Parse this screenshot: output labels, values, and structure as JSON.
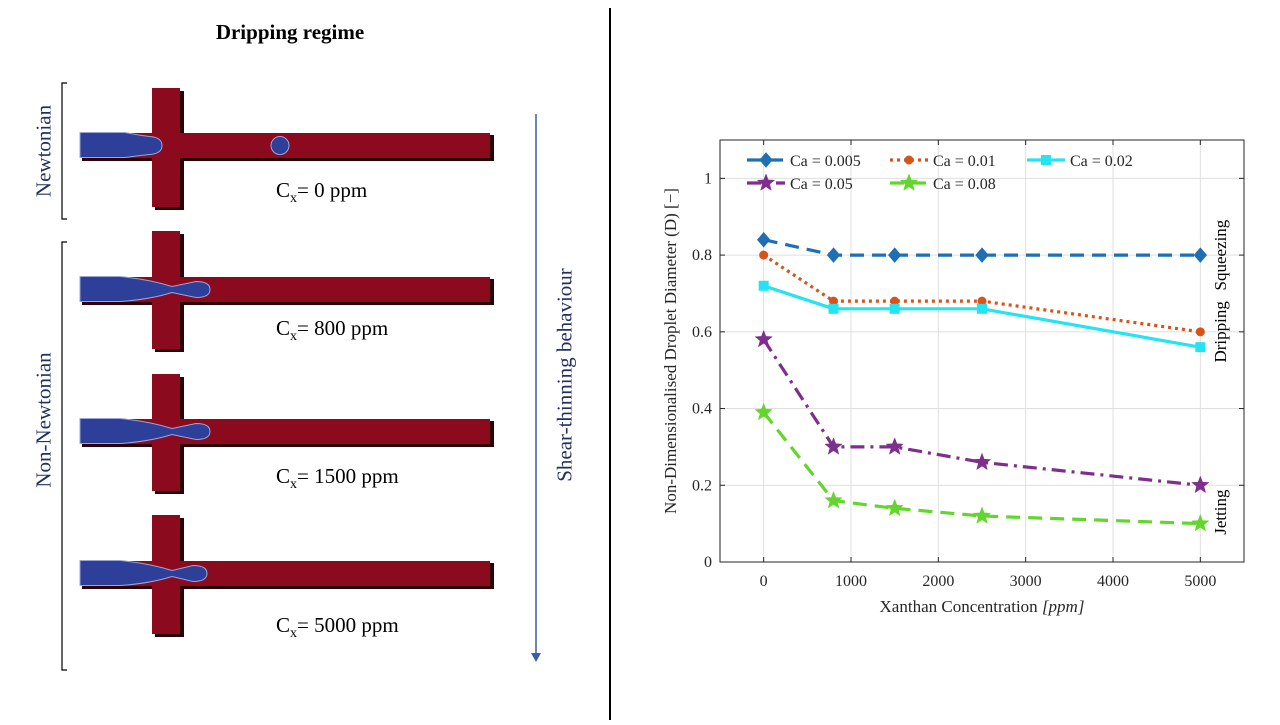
{
  "left": {
    "title": "Dripping regime",
    "group_newtonian": "Newtonian",
    "group_non_newtonian": "Non-Newtonian",
    "trend_label": "Shear-thinning behaviour",
    "cases": [
      {
        "symbol": "C",
        "subscript": "x",
        "value": "= 0 ppm"
      },
      {
        "symbol": "C",
        "subscript": "x",
        "value": "= 800 ppm"
      },
      {
        "symbol": "C",
        "subscript": "x",
        "value": "= 1500 ppm"
      },
      {
        "symbol": "C",
        "subscript": "x",
        "value": "= 5000 ppm"
      }
    ],
    "colors": {
      "channel": "#8b0a1e",
      "droplet": "#2e3f9a",
      "arrow": "#3a5fa8"
    }
  },
  "chart_data": {
    "type": "line",
    "title": "",
    "xlabel_prefix": "Xanthan Concentration ",
    "xlabel_unit": "[ppm]",
    "ylabel": "Non-Dimensionalised Droplet Diameter (D) [−]",
    "xlim": [
      -500,
      5500
    ],
    "ylim": [
      0,
      1.1
    ],
    "xticks": [
      0,
      1000,
      2000,
      3000,
      4000,
      5000
    ],
    "yticks": [
      0,
      0.2,
      0.4,
      0.6,
      0.8,
      1
    ],
    "xtick_labels": [
      "0",
      "1000",
      "2000",
      "3000",
      "4000",
      "5000"
    ],
    "ytick_labels": [
      "0",
      "0.2",
      "0.4",
      "0.6",
      "0.8",
      "1"
    ],
    "grid": true,
    "legend_position": "top",
    "x": [
      0,
      800,
      1500,
      2500,
      5000
    ],
    "series": [
      {
        "name": "Ca = 0.005",
        "color": "#1f6fb4",
        "marker": "diamond",
        "dash": "dashed",
        "values": [
          0.84,
          0.8,
          0.8,
          0.8,
          0.8
        ]
      },
      {
        "name": "Ca = 0.01",
        "color": "#d95319",
        "marker": "circle",
        "dash": "dotted",
        "values": [
          0.8,
          0.68,
          0.68,
          0.68,
          0.6
        ]
      },
      {
        "name": "Ca = 0.02",
        "color": "#22e4f2",
        "marker": "square",
        "dash": "solid",
        "values": [
          0.72,
          0.66,
          0.66,
          0.66,
          0.56
        ]
      },
      {
        "name": "Ca = 0.05",
        "color": "#7e2f8e",
        "marker": "star",
        "dash": "dashdot",
        "values": [
          0.58,
          0.3,
          0.3,
          0.26,
          0.2
        ]
      },
      {
        "name": "Ca = 0.08",
        "color": "#62d62b",
        "marker": "star",
        "dash": "dashed",
        "values": [
          0.39,
          0.16,
          0.14,
          0.12,
          0.1
        ]
      }
    ],
    "regime_labels": [
      {
        "text": "Squeezing",
        "y": 0.8
      },
      {
        "text": "Dripping",
        "y": 0.6
      },
      {
        "text": "Jetting",
        "y": 0.13
      }
    ]
  }
}
